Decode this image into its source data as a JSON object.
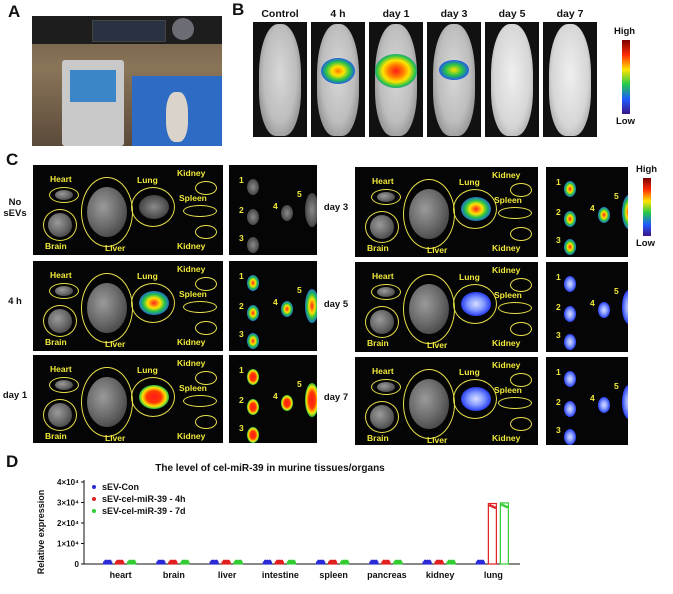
{
  "panels": {
    "a": "A",
    "b": "B",
    "c": "C",
    "d": "D"
  },
  "panel_b": {
    "columns": [
      "Control",
      "4 h",
      "day 1",
      "day 3",
      "day 5",
      "day 7"
    ],
    "scale_high": "High",
    "scale_low": "Low"
  },
  "panel_c": {
    "organs": {
      "heart": "Heart",
      "lung": "Lung",
      "kidney": "Kidney",
      "spleen": "Spleen",
      "brain": "Brain",
      "liver": "Liver"
    },
    "rows_left": [
      "No sEVs",
      "4 h",
      "day 1"
    ],
    "rows_right": [
      "day 3",
      "day 5",
      "day 7"
    ],
    "numbers": [
      "1",
      "2",
      "3",
      "4",
      "5"
    ],
    "scale_high": "High",
    "scale_low": "Low"
  },
  "chart_data": {
    "type": "bar",
    "title": "The level of cel-miR-39 in murine tissues/organs",
    "ylabel": "Relative expression",
    "xlabel": "",
    "categories": [
      "heart",
      "brain",
      "liver",
      "intestine",
      "spleen",
      "pancreas",
      "kidney",
      "lung"
    ],
    "ylim": [
      0,
      40000
    ],
    "yticks": [
      "0",
      "1×10⁴",
      "2×10⁴",
      "3×10⁴",
      "4×10⁴"
    ],
    "legend_position": "top-left",
    "series": [
      {
        "name": "sEV-Con",
        "color": "#2b2bd6",
        "values": [
          1,
          1,
          1,
          1,
          1,
          1,
          1,
          1
        ]
      },
      {
        "name": "sEV-cel-miR-39 - 4h",
        "color": "#e02020",
        "values": [
          1,
          1,
          1,
          1,
          1,
          1,
          1,
          29500
        ]
      },
      {
        "name": "sEV-cel-miR-39 - 7d",
        "color": "#33cc33",
        "values": [
          1,
          1,
          1,
          1,
          1,
          1,
          1,
          29800
        ]
      }
    ]
  }
}
